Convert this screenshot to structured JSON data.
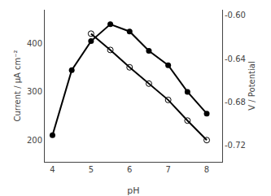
{
  "chart_data": {
    "type": "line",
    "xlabel": "pH",
    "ylabel": "Current / μA cm⁻²",
    "y2label": "V / Potential",
    "xlim": [
      3.8,
      8.4
    ],
    "xticks": [
      4,
      5,
      6,
      7,
      8
    ],
    "ylim": [
      155,
      470
    ],
    "yticks": [
      200,
      300,
      400
    ],
    "y2lim": [
      -0.735,
      -0.595
    ],
    "y2ticks": [
      {
        "value": -0.6,
        "label": "-0.60"
      },
      -0.64,
      -0.68,
      -0.72
    ],
    "grid": false,
    "series": [
      {
        "x": [
          4.0,
          4.5,
          5.0,
          5.5,
          6.0,
          6.5,
          7.0,
          7.5,
          8.0
        ],
        "values": [
          210,
          345,
          405,
          440,
          425,
          385,
          355,
          300,
          255
        ],
        "color": "black",
        "marker": "circle"
      },
      {
        "x": [
          5.0,
          5.5,
          6.0,
          6.5,
          7.0,
          7.5,
          8.0
        ],
        "values": [
          -0.617,
          -0.632,
          -0.648,
          -0.663,
          -0.678,
          -0.697,
          -0.715
        ],
        "color": "black",
        "marker": "circle-open",
        "axis": "y2"
      }
    ]
  }
}
